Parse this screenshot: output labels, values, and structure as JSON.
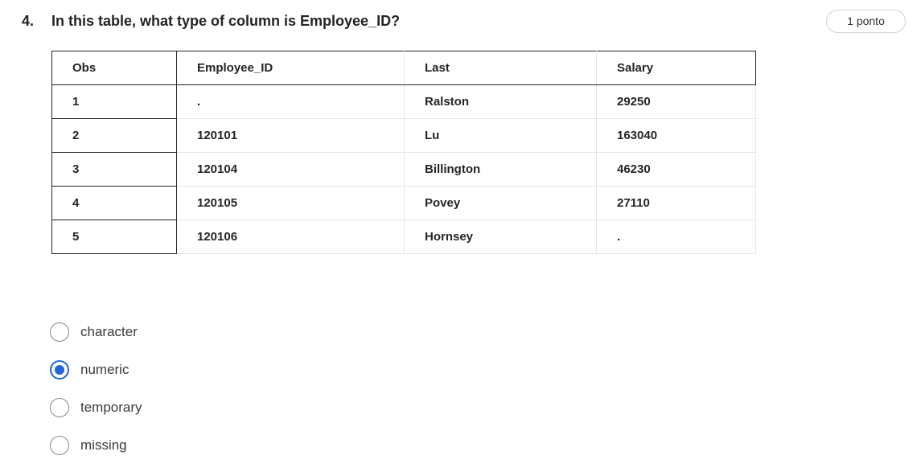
{
  "question": {
    "number": "4.",
    "title": "In this table, what type of column is Employee_ID?",
    "points": "1 ponto"
  },
  "table": {
    "headers": [
      "Obs",
      "Employee_ID",
      "Last",
      "Salary"
    ],
    "rows": [
      [
        "1",
        ".",
        "Ralston",
        "29250"
      ],
      [
        "2",
        "120101",
        "Lu",
        "163040"
      ],
      [
        "3",
        "120104",
        "Billington",
        "46230"
      ],
      [
        "4",
        "120105",
        "Povey",
        "27110"
      ],
      [
        "5",
        "120106",
        "Hornsey",
        "."
      ]
    ]
  },
  "options": [
    {
      "label": "character",
      "selected": false
    },
    {
      "label": "numeric",
      "selected": true
    },
    {
      "label": "temporary",
      "selected": false
    },
    {
      "label": "missing",
      "selected": false
    }
  ],
  "colors": {
    "accent": "#2266d4",
    "text": "#242424",
    "border": "#242424",
    "light_border": "#e6e6e6"
  }
}
